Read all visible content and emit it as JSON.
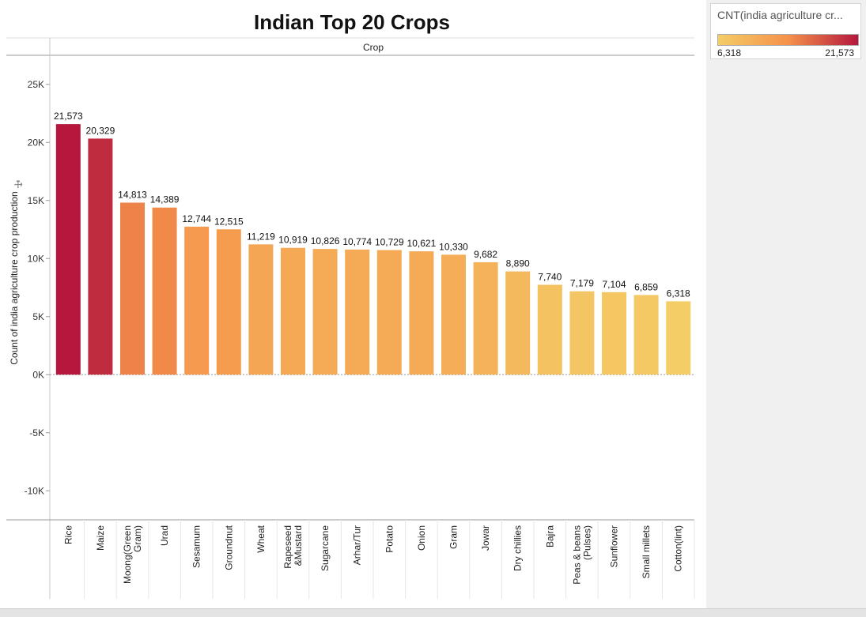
{
  "chart_data": {
    "type": "bar",
    "title": "Indian Top 20 Crops",
    "column_header": "Crop",
    "ylabel": "Count of india agriculture crop production",
    "ylim": [
      -12500,
      27500
    ],
    "yticks": [
      -10000,
      -5000,
      0,
      5000,
      10000,
      15000,
      20000,
      25000
    ],
    "ytick_labels": [
      "-10K",
      "-5K",
      "0K",
      "5K",
      "10K",
      "15K",
      "20K",
      "25K"
    ],
    "categories": [
      "Rice",
      "Maize",
      "Moong(Green Gram)",
      "Urad",
      "Sesamum",
      "Groundnut",
      "Wheat",
      "Rapeseed &Mustard",
      "Sugarcane",
      "Arhar/Tur",
      "Potato",
      "Onion",
      "Gram",
      "Jowar",
      "Dry chillies",
      "Bajra",
      "Peas & beans (Pulses)",
      "Sunflower",
      "Small millets",
      "Cotton(lint)"
    ],
    "category_lines": [
      [
        "Rice"
      ],
      [
        "Maize"
      ],
      [
        "Moong(Green",
        "Gram)"
      ],
      [
        "Urad"
      ],
      [
        "Sesamum"
      ],
      [
        "Groundnut"
      ],
      [
        "Wheat"
      ],
      [
        "Rapeseed",
        "&Mustard"
      ],
      [
        "Sugarcane"
      ],
      [
        "Arhar/Tur"
      ],
      [
        "Potato"
      ],
      [
        "Onion"
      ],
      [
        "Gram"
      ],
      [
        "Jowar"
      ],
      [
        "Dry chillies"
      ],
      [
        "Bajra"
      ],
      [
        "Peas & beans",
        "(Pulses)"
      ],
      [
        "Sunflower"
      ],
      [
        "Small millets"
      ],
      [
        "Cotton(lint)"
      ]
    ],
    "values": [
      21573,
      20329,
      14813,
      14389,
      12744,
      12515,
      11219,
      10919,
      10826,
      10774,
      10729,
      10621,
      10330,
      9682,
      8890,
      7740,
      7179,
      7104,
      6859,
      6318
    ],
    "value_labels": [
      "21,573",
      "20,329",
      "14,813",
      "14,389",
      "12,744",
      "12,515",
      "11,219",
      "10,919",
      "10,826",
      "10,774",
      "10,729",
      "10,621",
      "10,330",
      "9,682",
      "8,890",
      "7,740",
      "7,179",
      "7,104",
      "6,859",
      "6,318"
    ],
    "color_scale": {
      "low": "#f4cd66",
      "mid": "#f5914a",
      "high": "#b5173d"
    },
    "grid": false
  },
  "legend": {
    "title": "CNT(india agriculture cr...",
    "min_label": "6,318",
    "max_label": "21,573"
  }
}
